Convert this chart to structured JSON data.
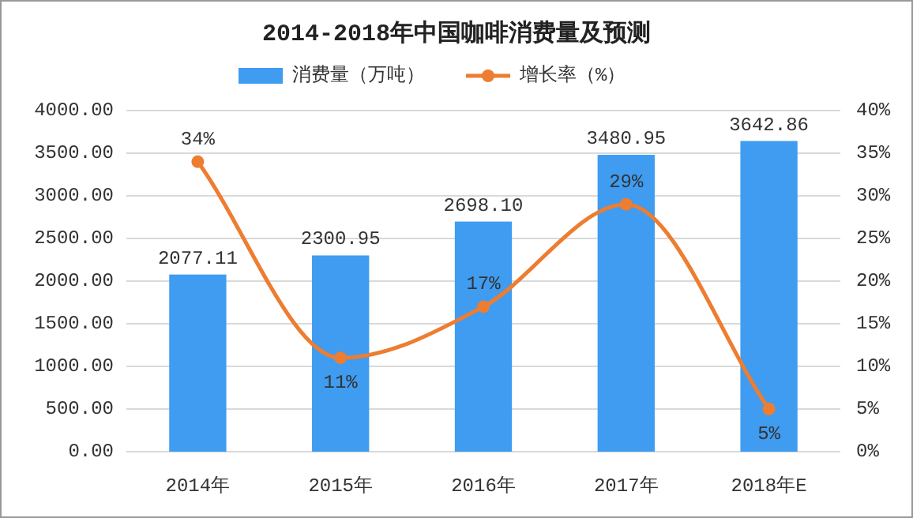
{
  "chart_data": {
    "type": "bar",
    "title": "2014-2018年中国咖啡消费量及预测",
    "categories": [
      "2014年",
      "2015年",
      "2016年",
      "2017年",
      "2018年E"
    ],
    "series": [
      {
        "name": "消费量（万吨）",
        "color": "#3f9cf0",
        "values": [
          2077.11,
          2300.95,
          2698.1,
          3480.95,
          3642.86
        ],
        "value_labels": [
          "2077.11",
          "2300.95",
          "2698.10",
          "3480.95",
          "3642.86"
        ]
      },
      {
        "name": "增长率（%）",
        "type": "line",
        "axis": "y2",
        "color": "#ed7d31",
        "values": [
          34,
          11,
          17,
          29,
          5
        ],
        "value_labels": [
          "34%",
          "11%",
          "17%",
          "29%",
          "5%"
        ]
      }
    ],
    "ylim": [
      0,
      4000
    ],
    "yticks": [
      {
        "value": 0,
        "label": "0.00"
      },
      {
        "value": 500,
        "label": "500.00"
      },
      {
        "value": 1000,
        "label": "1000.00"
      },
      {
        "value": 1500,
        "label": "1500.00"
      },
      {
        "value": 2000,
        "label": "2000.00"
      },
      {
        "value": 2500,
        "label": "2500.00"
      },
      {
        "value": 3000,
        "label": "3000.00"
      },
      {
        "value": 3500,
        "label": "3500.00"
      },
      {
        "value": 4000,
        "label": "4000.00"
      }
    ],
    "y2lim": [
      0,
      40
    ],
    "y2ticks": [
      {
        "value": 0,
        "label": "0%"
      },
      {
        "value": 5,
        "label": "5%"
      },
      {
        "value": 10,
        "label": "10%"
      },
      {
        "value": 15,
        "label": "15%"
      },
      {
        "value": 20,
        "label": "20%"
      },
      {
        "value": 25,
        "label": "25%"
      },
      {
        "value": 30,
        "label": "30%"
      },
      {
        "value": 35,
        "label": "35%"
      },
      {
        "value": 40,
        "label": "40%"
      }
    ],
    "grid": "y",
    "legend": "top",
    "marker": "circle",
    "line_style": "solid"
  }
}
